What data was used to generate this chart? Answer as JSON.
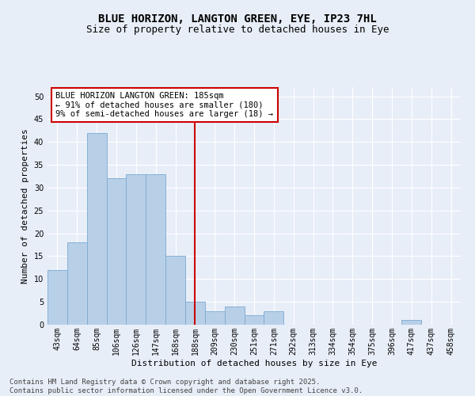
{
  "title_line1": "BLUE HORIZON, LANGTON GREEN, EYE, IP23 7HL",
  "title_line2": "Size of property relative to detached houses in Eye",
  "xlabel": "Distribution of detached houses by size in Eye",
  "ylabel": "Number of detached properties",
  "categories": [
    "43sqm",
    "64sqm",
    "85sqm",
    "106sqm",
    "126sqm",
    "147sqm",
    "168sqm",
    "188sqm",
    "209sqm",
    "230sqm",
    "251sqm",
    "271sqm",
    "292sqm",
    "313sqm",
    "334sqm",
    "354sqm",
    "375sqm",
    "396sqm",
    "417sqm",
    "437sqm",
    "458sqm"
  ],
  "values": [
    12,
    18,
    42,
    32,
    33,
    33,
    15,
    5,
    3,
    4,
    2,
    3,
    0,
    0,
    0,
    0,
    0,
    0,
    1,
    0,
    0
  ],
  "bar_color": "#b8cfe8",
  "bar_edge_color": "#7aaad0",
  "highlight_index": 7,
  "highlight_line_color": "#cc0000",
  "annotation_text": "BLUE HORIZON LANGTON GREEN: 185sqm\n← 91% of detached houses are smaller (180)\n9% of semi-detached houses are larger (18) →",
  "annotation_box_color": "#ffffff",
  "annotation_box_edge_color": "#cc0000",
  "ylim": [
    0,
    52
  ],
  "yticks": [
    0,
    5,
    10,
    15,
    20,
    25,
    30,
    35,
    40,
    45,
    50
  ],
  "background_color": "#e8eef8",
  "grid_color": "#ffffff",
  "footer_text": "Contains HM Land Registry data © Crown copyright and database right 2025.\nContains public sector information licensed under the Open Government Licence v3.0.",
  "title_fontsize": 10,
  "subtitle_fontsize": 9,
  "axis_label_fontsize": 8,
  "tick_fontsize": 7,
  "annotation_fontsize": 7.5,
  "footer_fontsize": 6.5
}
